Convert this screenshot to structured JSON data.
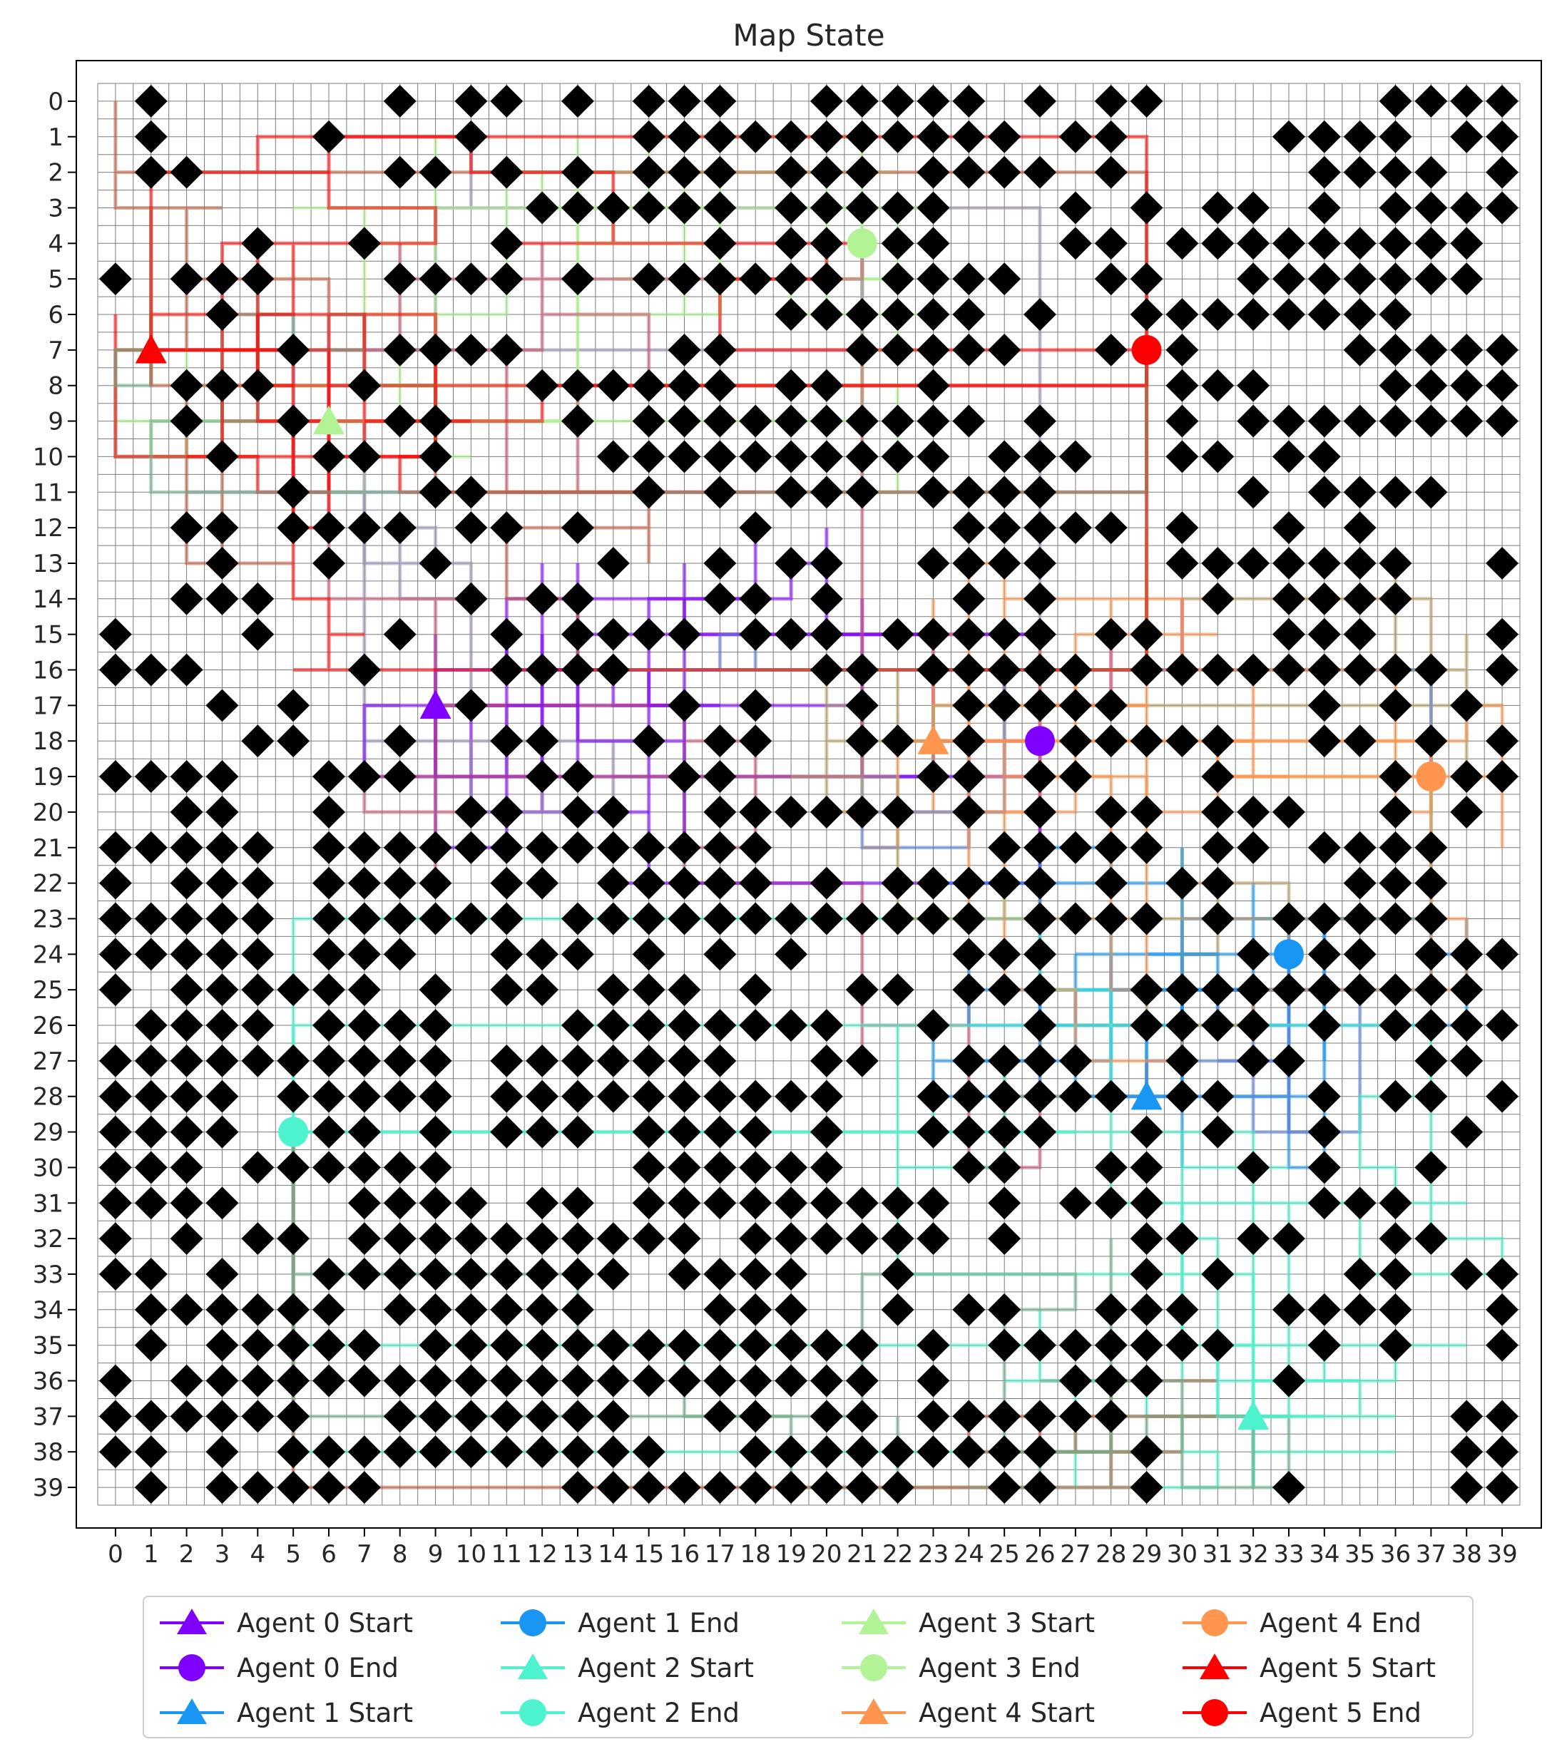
{
  "chart_data": {
    "type": "grid-map",
    "title": "Map State",
    "grid_size": [
      40,
      40
    ],
    "x_ticks": [
      "0",
      "1",
      "2",
      "3",
      "4",
      "5",
      "6",
      "7",
      "8",
      "9",
      "10",
      "11",
      "12",
      "13",
      "14",
      "15",
      "16",
      "17",
      "18",
      "19",
      "20",
      "21",
      "22",
      "23",
      "24",
      "25",
      "26",
      "27",
      "28",
      "29",
      "30",
      "31",
      "32",
      "33",
      "34",
      "35",
      "36",
      "37",
      "38",
      "39"
    ],
    "y_ticks": [
      "0",
      "1",
      "2",
      "3",
      "4",
      "5",
      "6",
      "7",
      "8",
      "9",
      "10",
      "11",
      "12",
      "13",
      "14",
      "15",
      "16",
      "17",
      "18",
      "19",
      "20",
      "21",
      "22",
      "23",
      "24",
      "25",
      "26",
      "27",
      "28",
      "29",
      "30",
      "31",
      "32",
      "33",
      "34",
      "35",
      "36",
      "37",
      "38",
      "39"
    ],
    "grid": true,
    "y_inverted": true,
    "obstacle_marker": "black-diamond",
    "legend_position": "bottom",
    "agents": [
      {
        "name": "Agent 0",
        "color": "#8000ff",
        "start": [
          9,
          17
        ],
        "end": [
          26,
          18
        ],
        "start_label": "Agent 0 Start",
        "end_label": "Agent 0 End"
      },
      {
        "name": "Agent 1",
        "color": "#1996f3",
        "start": [
          29,
          28
        ],
        "end": [
          33,
          24
        ],
        "start_label": "Agent 1 Start",
        "end_label": "Agent 1 End"
      },
      {
        "name": "Agent 2",
        "color": "#4df3ce",
        "start": [
          32,
          37
        ],
        "end": [
          5,
          29
        ],
        "start_label": "Agent 2 Start",
        "end_label": "Agent 2 End"
      },
      {
        "name": "Agent 3",
        "color": "#b2f396",
        "start": [
          6,
          9
        ],
        "end": [
          21,
          4
        ],
        "start_label": "Agent 3 Start",
        "end_label": "Agent 3 End"
      },
      {
        "name": "Agent 4",
        "color": "#ff964f",
        "start": [
          23,
          18
        ],
        "end": [
          37,
          19
        ],
        "start_label": "Agent 4 Start",
        "end_label": "Agent 4 End"
      },
      {
        "name": "Agent 5",
        "color": "#ff0000",
        "start": [
          1,
          7
        ],
        "end": [
          29,
          7
        ],
        "start_label": "Agent 5 Start",
        "end_label": "Agent 5 End"
      }
    ]
  }
}
